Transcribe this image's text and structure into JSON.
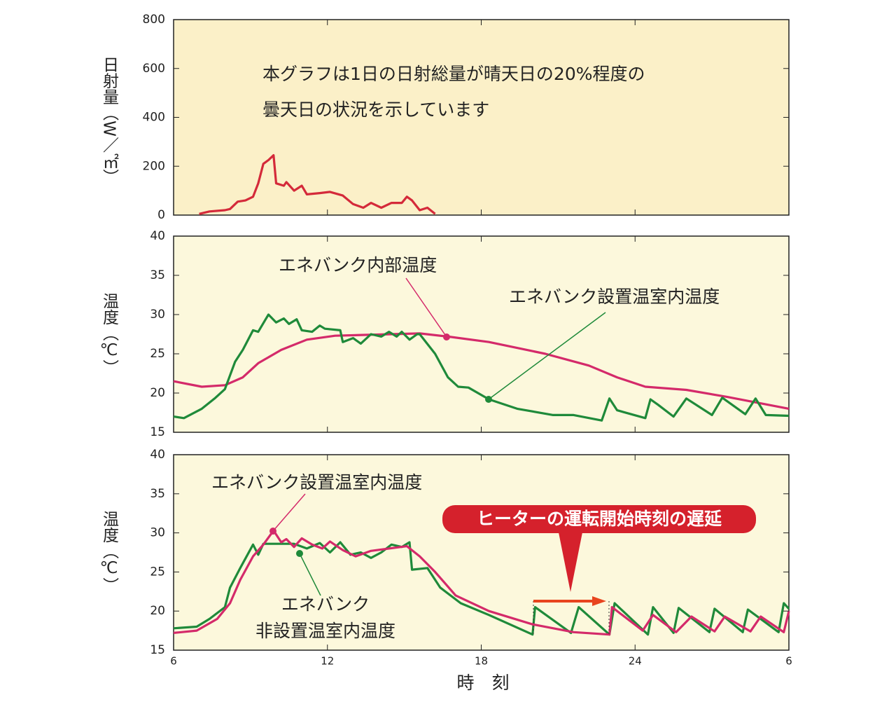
{
  "chart_data": [
    {
      "type": "line",
      "ylabel": "日射量（W／㎡）",
      "ylim": [
        0,
        800
      ],
      "yticks": [
        0,
        200,
        400,
        600,
        800
      ],
      "xlim": [
        6,
        30
      ],
      "annotations": [
        "本グラフは1日の日射総量が晴天日の20%程度の",
        "曇天日の状況を示しています"
      ],
      "series": [
        {
          "color": "#d42a3a",
          "x": [
            7.0,
            7.4,
            8.0,
            8.2,
            8.5,
            8.8,
            9.1,
            9.3,
            9.5,
            9.7,
            9.9,
            10.0,
            10.3,
            10.4,
            10.7,
            11.0,
            11.2,
            11.7,
            12.1,
            12.6,
            13.0,
            13.4,
            13.7,
            14.1,
            14.5,
            14.9,
            15.1,
            15.3,
            15.6,
            15.9,
            16.2
          ],
          "values": [
            5,
            15,
            20,
            25,
            55,
            60,
            75,
            130,
            210,
            225,
            245,
            130,
            120,
            135,
            100,
            120,
            85,
            90,
            95,
            80,
            45,
            30,
            50,
            30,
            50,
            50,
            75,
            60,
            20,
            30,
            5
          ]
        }
      ]
    },
    {
      "type": "line",
      "ylabel": "温度（℃）",
      "ylim": [
        15,
        40
      ],
      "yticks": [
        15,
        20,
        25,
        30,
        35,
        40
      ],
      "xlim": [
        6,
        30
      ],
      "annotations": [
        "エネバンク内部温度",
        "エネバンク設置温室内温度"
      ],
      "series": [
        {
          "color": "#d42a6a",
          "x": [
            6,
            7.1,
            8.0,
            8.7,
            9.3,
            10.2,
            11.2,
            12.3,
            14.5,
            15.6,
            16.7,
            18.3,
            20.5,
            22.2,
            23.3,
            24.4,
            26.0,
            27.6,
            30
          ],
          "values": [
            21.5,
            20.8,
            21,
            22,
            23.8,
            25.5,
            26.8,
            27.3,
            27.5,
            27.6,
            27.2,
            26.5,
            25,
            23.5,
            22,
            20.8,
            20.4,
            19.5,
            18
          ]
        },
        {
          "color": "#1f8a3a",
          "x": [
            6,
            6.4,
            7.1,
            7.6,
            8.0,
            8.4,
            8.7,
            9.1,
            9.3,
            9.7,
            10.0,
            10.3,
            10.5,
            10.8,
            11.0,
            11.4,
            11.7,
            11.9,
            12.5,
            12.6,
            13.0,
            13.3,
            13.7,
            14.1,
            14.4,
            14.7,
            14.9,
            15.2,
            15.5,
            15.6,
            16.2,
            16.7,
            17.1,
            17.5,
            18.3,
            19.4,
            20.8,
            21.6,
            22.7,
            23.0,
            23.3,
            24.4,
            24.6,
            24.9,
            25.5,
            26.0,
            27.0,
            27.4,
            28.3,
            28.7,
            29.1,
            30
          ],
          "values": [
            17,
            16.8,
            18,
            19.3,
            20.5,
            24,
            25.5,
            28,
            27.8,
            30,
            29,
            29.5,
            28.8,
            29.4,
            28,
            27.8,
            28.6,
            28.2,
            28,
            26.5,
            27,
            26.3,
            27.5,
            27.2,
            27.8,
            27.2,
            27.8,
            26.8,
            27.5,
            27.5,
            25,
            22,
            20.8,
            20.7,
            19.2,
            18,
            17.2,
            17.2,
            16.5,
            19.3,
            17.8,
            16.8,
            19.2,
            18.5,
            17,
            19.3,
            17.2,
            19.4,
            17.3,
            19.3,
            17.2,
            17.1
          ]
        }
      ]
    },
    {
      "type": "line",
      "ylabel": "温度（℃）",
      "ylim": [
        15,
        40
      ],
      "yticks": [
        15,
        20,
        25,
        30,
        35,
        40
      ],
      "xlim": [
        6,
        30
      ],
      "xticks": [
        6,
        12,
        18,
        24,
        {
          "value": 30,
          "label": "6"
        }
      ],
      "xlabel": "時　刻",
      "annotations": [
        "エネバンク設置温室内温度",
        "エネバンク",
        "非設置温室内温度",
        "ヒーターの運転開始時刻の遅延"
      ],
      "series": [
        {
          "color": "#1f8a3a",
          "x": [
            6,
            6.9,
            7.4,
            8.0,
            8.2,
            8.6,
            9.1,
            9.3,
            9.5,
            10.7,
            11.2,
            11.7,
            12.1,
            12.5,
            12.9,
            13.3,
            13.7,
            14.1,
            14.5,
            14.9,
            15.2,
            15.3,
            15.9,
            16.4,
            17.2,
            18.3,
            20.0,
            20.1,
            21.5,
            21.8,
            23.0,
            23.2,
            24.5,
            24.7,
            25.5,
            25.7,
            26.9,
            27.1,
            28.2,
            28.4,
            29.6,
            29.8,
            30
          ],
          "values": [
            17.8,
            18,
            19,
            20.5,
            23,
            25.5,
            28.5,
            27.2,
            28.6,
            28.6,
            28,
            28.7,
            27.5,
            28.8,
            27.2,
            27.5,
            26.8,
            27.5,
            28.5,
            28.2,
            28.8,
            25.3,
            25.5,
            23,
            21,
            19.5,
            17,
            20.5,
            17.2,
            20.5,
            17,
            21,
            17,
            20.5,
            17.2,
            20.4,
            17.3,
            20.3,
            17.3,
            20.2,
            17.3,
            21,
            20.3
          ]
        },
        {
          "color": "#d42a6a",
          "x": [
            6,
            6.9,
            7.7,
            8.2,
            8.6,
            9.1,
            9.5,
            9.9,
            10.2,
            10.4,
            10.7,
            11.0,
            11.4,
            11.8,
            12.1,
            12.6,
            13.1,
            13.7,
            14.4,
            15.1,
            15.6,
            16.2,
            17.0,
            18.3,
            20.0,
            21.6,
            23.0,
            23.1,
            24.3,
            24.7,
            25.6,
            26.2,
            27.1,
            27.5,
            28.5,
            28.9,
            29.8,
            30
          ],
          "values": [
            17.2,
            17.5,
            19,
            21,
            24,
            27,
            28.5,
            30.3,
            28.8,
            29.2,
            28.2,
            29.3,
            28.5,
            28,
            28.9,
            27.8,
            27,
            27.7,
            28,
            28.3,
            27,
            25,
            22,
            20,
            18.3,
            17.3,
            17,
            20.5,
            17.5,
            19.5,
            17.3,
            19.3,
            17.4,
            19.3,
            17.4,
            19.3,
            17.3,
            20
          ]
        }
      ]
    }
  ]
}
